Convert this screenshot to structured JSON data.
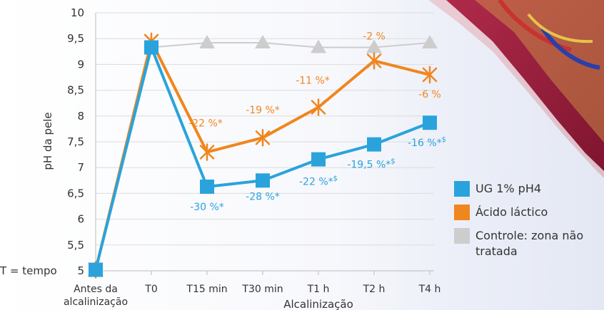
{
  "chart_data": {
    "type": "line",
    "ylabel": "pH da pele",
    "xlabel": "Alcalinização",
    "ylim": [
      5,
      10
    ],
    "yticks": [
      "5",
      "5,5",
      "6",
      "6,5",
      "7",
      "7,5",
      "8",
      "8,5",
      "9",
      "9,5",
      "10"
    ],
    "categories": [
      "Antes da alcalinização",
      "T0",
      "T15 min",
      "T30 min",
      "T1 h",
      "T2 h",
      "T4 h"
    ],
    "category_lines": [
      [
        "Antes da",
        "alcalinização"
      ],
      [
        "T0"
      ],
      [
        "T15 min"
      ],
      [
        "T30 min"
      ],
      [
        "T1 h"
      ],
      [
        "T2 h"
      ],
      [
        "T4 h"
      ]
    ],
    "grid": "horizontal",
    "series": [
      {
        "name": "UG 1% pH4",
        "color": "#2aa3dc",
        "marker": "square",
        "values": [
          5.02,
          9.33,
          6.63,
          6.75,
          7.16,
          7.45,
          7.87
        ],
        "labels": [
          "",
          "",
          "-30 %*",
          "-28 %*",
          "-22 %*$",
          "-19,5 %*$",
          "-16 %*$"
        ]
      },
      {
        "name": "Ácido láctico",
        "color": "#f0861e",
        "marker": "star",
        "values": [
          5.02,
          9.45,
          7.3,
          7.58,
          8.17,
          9.07,
          8.8
        ],
        "labels": [
          "",
          "",
          "-22 %*",
          "-19 %*",
          "-11 %*",
          "-2 %",
          "-6 %"
        ]
      },
      {
        "name": "Controle: zona não tratada",
        "color": "#cdcdcd",
        "marker": "triangle",
        "values": [
          5.02,
          9.33,
          9.42,
          9.42,
          9.33,
          9.33,
          9.42
        ],
        "labels": []
      }
    ],
    "legend_position": "right",
    "footnote": "T = tempo"
  }
}
